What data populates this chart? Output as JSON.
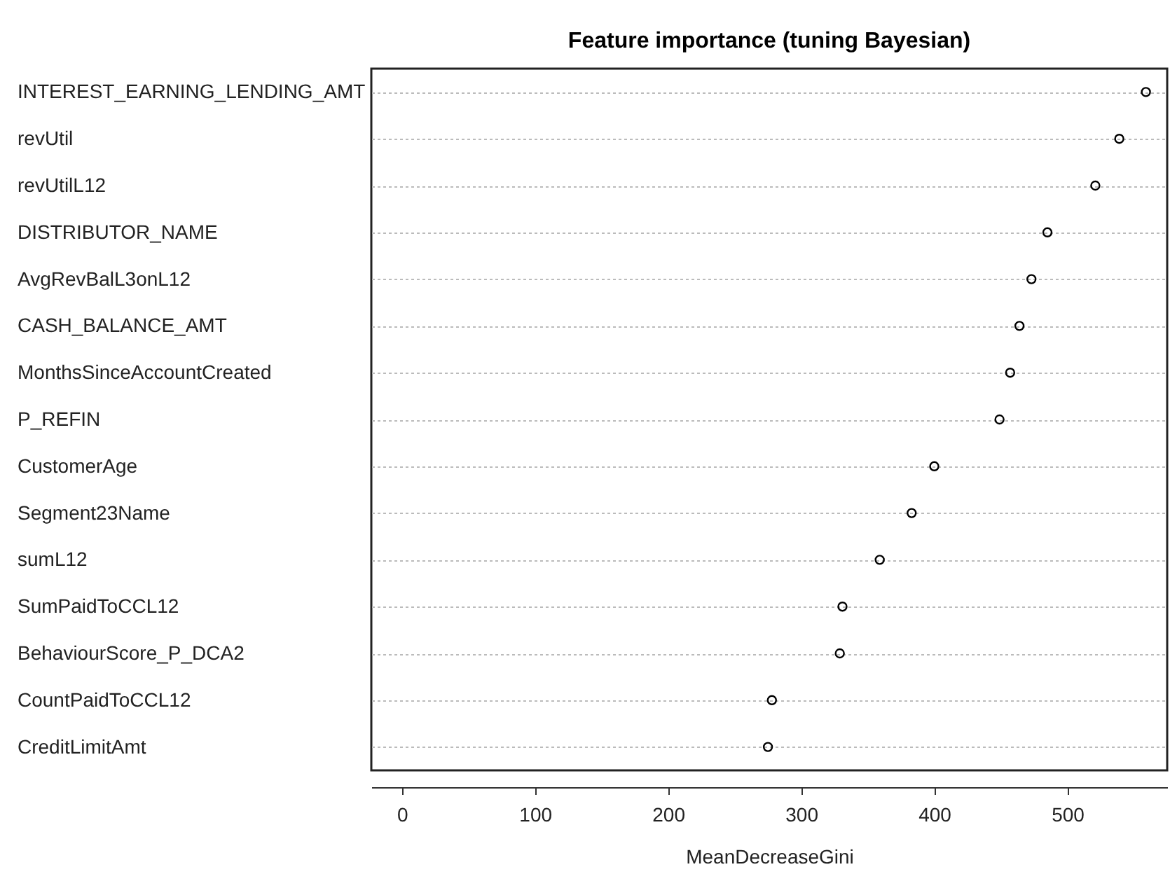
{
  "chart_data": {
    "type": "scatter",
    "title": "Feature importance (tuning Bayesian)",
    "xlabel": "MeanDecreaseGini",
    "categories": [
      "INTEREST_EARNING_LENDING_AMT",
      "revUtil",
      "revUtilL12",
      "DISTRIBUTOR_NAME",
      "AvgRevBalL3onL12",
      "CASH_BALANCE_AMT",
      "MonthsSinceAccountCreated",
      "P_REFIN",
      "CustomerAge",
      "Segment23Name",
      "sumL12",
      "SumPaidToCCL12",
      "BehaviourScore_P_DCA2",
      "CountPaidToCCL12",
      "CreditLimitAmt"
    ],
    "orientation": "horizontal",
    "series": [
      {
        "color": "#000000",
        "values": [
          559,
          539,
          521,
          485,
          473,
          464,
          457,
          449,
          400,
          383,
          359,
          331,
          329,
          278,
          275
        ]
      }
    ],
    "xlim": [
      -23,
      575
    ],
    "xticks": [
      0,
      100,
      200,
      300,
      400,
      500
    ],
    "grid": "y",
    "marker": "circle"
  }
}
